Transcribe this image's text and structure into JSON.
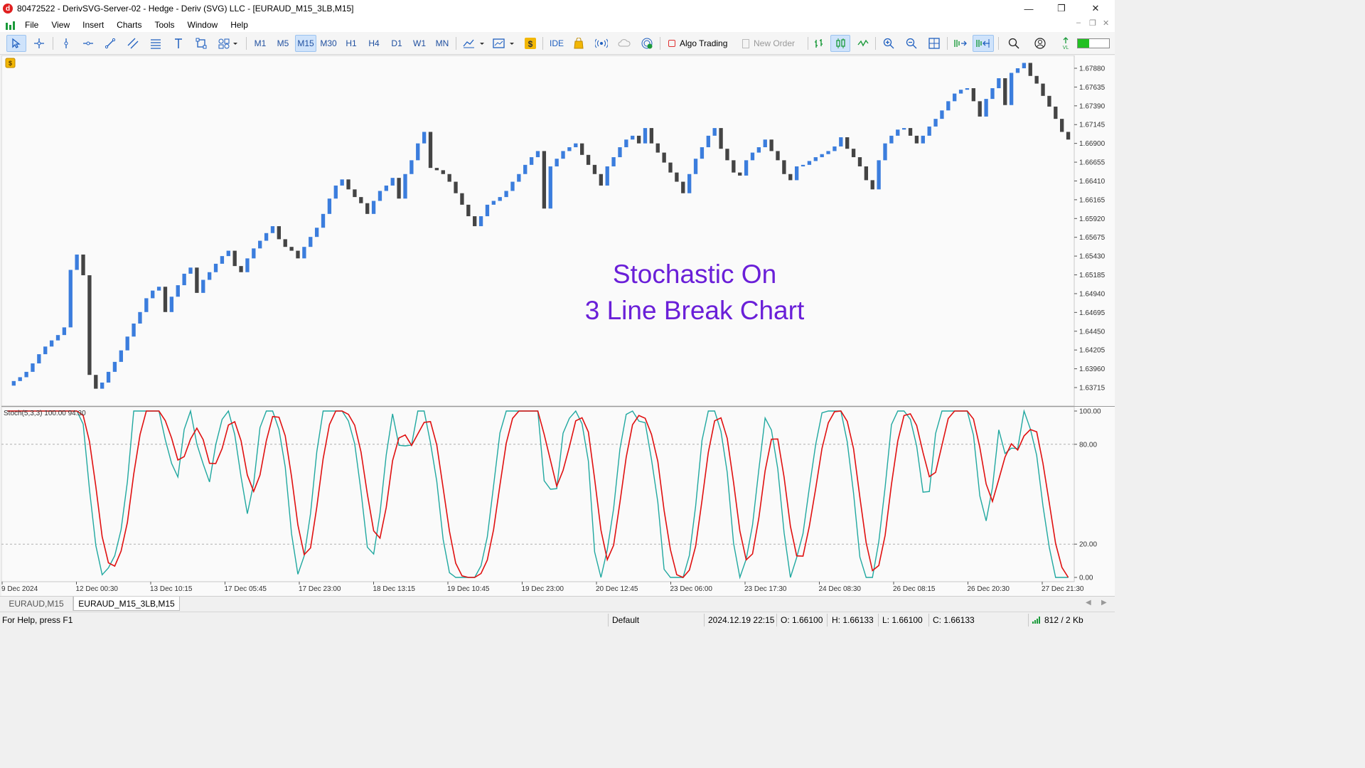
{
  "window": {
    "title": "80472522 - DerivSVG-Server-02 - Hedge - Deriv (SVG) LLC - [EURAUD_M15_3LB,M15]",
    "app_icon_letter": "d",
    "minimize_glyph": "—",
    "maximize_glyph": "❐",
    "close_glyph": "✕"
  },
  "menu": {
    "items": [
      "File",
      "View",
      "Insert",
      "Charts",
      "Tools",
      "Window",
      "Help"
    ],
    "mdi_minimize": "–",
    "mdi_restore": "❐",
    "mdi_close": "✕"
  },
  "toolbar": {
    "timeframes": [
      "M1",
      "M5",
      "M15",
      "M30",
      "H1",
      "H4",
      "D1",
      "W1",
      "MN"
    ],
    "active_timeframe": "M15",
    "ide_label": "IDE",
    "algo_trading_label": "Algo Trading",
    "new_order_label": "New Order",
    "icons": [
      "cursor-icon",
      "crosshair-icon",
      "vertical-line-icon",
      "horizontal-line-icon",
      "trendline-icon",
      "channel-icon",
      "fibonacci-icon",
      "text-icon",
      "shapes-icon",
      "objects-icon",
      "indicators-icon",
      "templates-icon",
      "signals-icon",
      "market-icon",
      "vps-icon",
      "cloud-icon",
      "radar-icon",
      "bar-chart-icon",
      "candle-chart-icon",
      "line-chart-icon",
      "zoom-in-icon",
      "zoom-out-icon",
      "tile-icon",
      "scroll-icon",
      "autoscroll-icon",
      "search-icon",
      "account-icon",
      "signal-strength-icon"
    ]
  },
  "chart": {
    "price_axis": [
      "1.67880",
      "1.67635",
      "1.67390",
      "1.67145",
      "1.66900",
      "1.66655",
      "1.66410",
      "1.66165",
      "1.65920",
      "1.65675",
      "1.65430",
      "1.65185",
      "1.64940",
      "1.64695",
      "1.64450",
      "1.64205",
      "1.63960",
      "1.63715"
    ],
    "annotation_line1": "Stochastic On",
    "annotation_line2": "3 Line Break Chart",
    "annotation_color": "#6a1fd8",
    "up_color": "#3b7ddd",
    "down_color": "#444444",
    "time_axis": [
      "9 Dec 2024",
      "12 Dec 00:30",
      "13 Dec 10:15",
      "17 Dec 05:45",
      "17 Dec 23:00",
      "18 Dec 13:15",
      "19 Dec 10:45",
      "19 Dec 23:00",
      "20 Dec 12:45",
      "23 Dec 06:00",
      "23 Dec 17:30",
      "24 Dec 08:30",
      "26 Dec 08:15",
      "26 Dec 20:30",
      "27 Dec 21:30"
    ]
  },
  "chart_data": {
    "type": "bar",
    "title": "",
    "line_break_closes": [
      1.6374,
      1.638,
      1.6385,
      1.6392,
      1.6403,
      1.6415,
      1.6425,
      1.6433,
      1.644,
      1.645,
      1.6525,
      1.6545,
      1.6518,
      1.6388,
      1.637,
      1.6378,
      1.6392,
      1.6405,
      1.642,
      1.6438,
      1.6455,
      1.647,
      1.6488,
      1.6498,
      1.6503,
      1.647,
      1.649,
      1.6505,
      1.652,
      1.6528,
      1.6495,
      1.6512,
      1.6522,
      1.6533,
      1.6543,
      1.655,
      1.653,
      1.6522,
      1.654,
      1.6553,
      1.6563,
      1.6573,
      1.6582,
      1.6565,
      1.6555,
      1.655,
      1.654,
      1.6555,
      1.6568,
      1.658,
      1.6598,
      1.6618,
      1.6635,
      1.6643,
      1.663,
      1.662,
      1.6612,
      1.6598,
      1.6615,
      1.6628,
      1.6635,
      1.6645,
      1.6618,
      1.665,
      1.6668,
      1.669,
      1.6705,
      1.6658,
      1.6655,
      1.665,
      1.664,
      1.6625,
      1.661,
      1.6595,
      1.6582,
      1.6595,
      1.661,
      1.6615,
      1.662,
      1.6628,
      1.664,
      1.665,
      1.6662,
      1.6672,
      1.668,
      1.6605,
      1.666,
      1.667,
      1.668,
      1.6685,
      1.669,
      1.6675,
      1.6662,
      1.665,
      1.6635,
      1.666,
      1.6672,
      1.6685,
      1.6695,
      1.67,
      1.669,
      1.671,
      1.669,
      1.6678,
      1.6665,
      1.6652,
      1.664,
      1.6625,
      1.665,
      1.667,
      1.6685,
      1.67,
      1.671,
      1.6683,
      1.6668,
      1.6652,
      1.6648,
      1.6668,
      1.6678,
      1.6685,
      1.6695,
      1.668,
      1.6668,
      1.665,
      1.6642,
      1.666,
      1.6662,
      1.6667,
      1.6672,
      1.6676,
      1.668,
      1.6686,
      1.6698,
      1.6683,
      1.6672,
      1.666,
      1.6642,
      1.663,
      1.6668,
      1.669,
      1.67,
      1.6708,
      1.671,
      1.67,
      1.669,
      1.67,
      1.6712,
      1.6722,
      1.6733,
      1.6745,
      1.6755,
      1.676,
      1.6762,
      1.6745,
      1.6725,
      1.6748,
      1.6762,
      1.6775,
      1.674,
      1.6782,
      1.6788,
      1.6795,
      1.6778,
      1.6768,
      1.6752,
      1.6738,
      1.6722,
      1.6705,
      1.6695
    ],
    "stochastic": {
      "label": "Stoch(5,3,3) 100.00 94.30",
      "k_period": 5,
      "d_period": 3,
      "slowing": 3,
      "main_value": 100.0,
      "signal_value": 94.3,
      "levels": [
        20,
        80
      ],
      "ylim": [
        0,
        100
      ],
      "axis_labels": [
        "100.00",
        "80.00",
        "20.00",
        "0.00"
      ],
      "main_color": "#20a8a0",
      "signal_color": "#e01010"
    }
  },
  "tabs": [
    "EURAUD,M15",
    "EURAUD_M15_3LB,M15"
  ],
  "active_tab": "EURAUD_M15_3LB,M15",
  "status": {
    "help": "For Help, press F1",
    "profile": "Default",
    "datetime": "2024.12.19 22:15",
    "open": "O: 1.66100",
    "high": "H: 1.66133",
    "low": "L: 1.66100",
    "close": "C: 1.66133",
    "traffic": "812 / 2 Kb"
  }
}
